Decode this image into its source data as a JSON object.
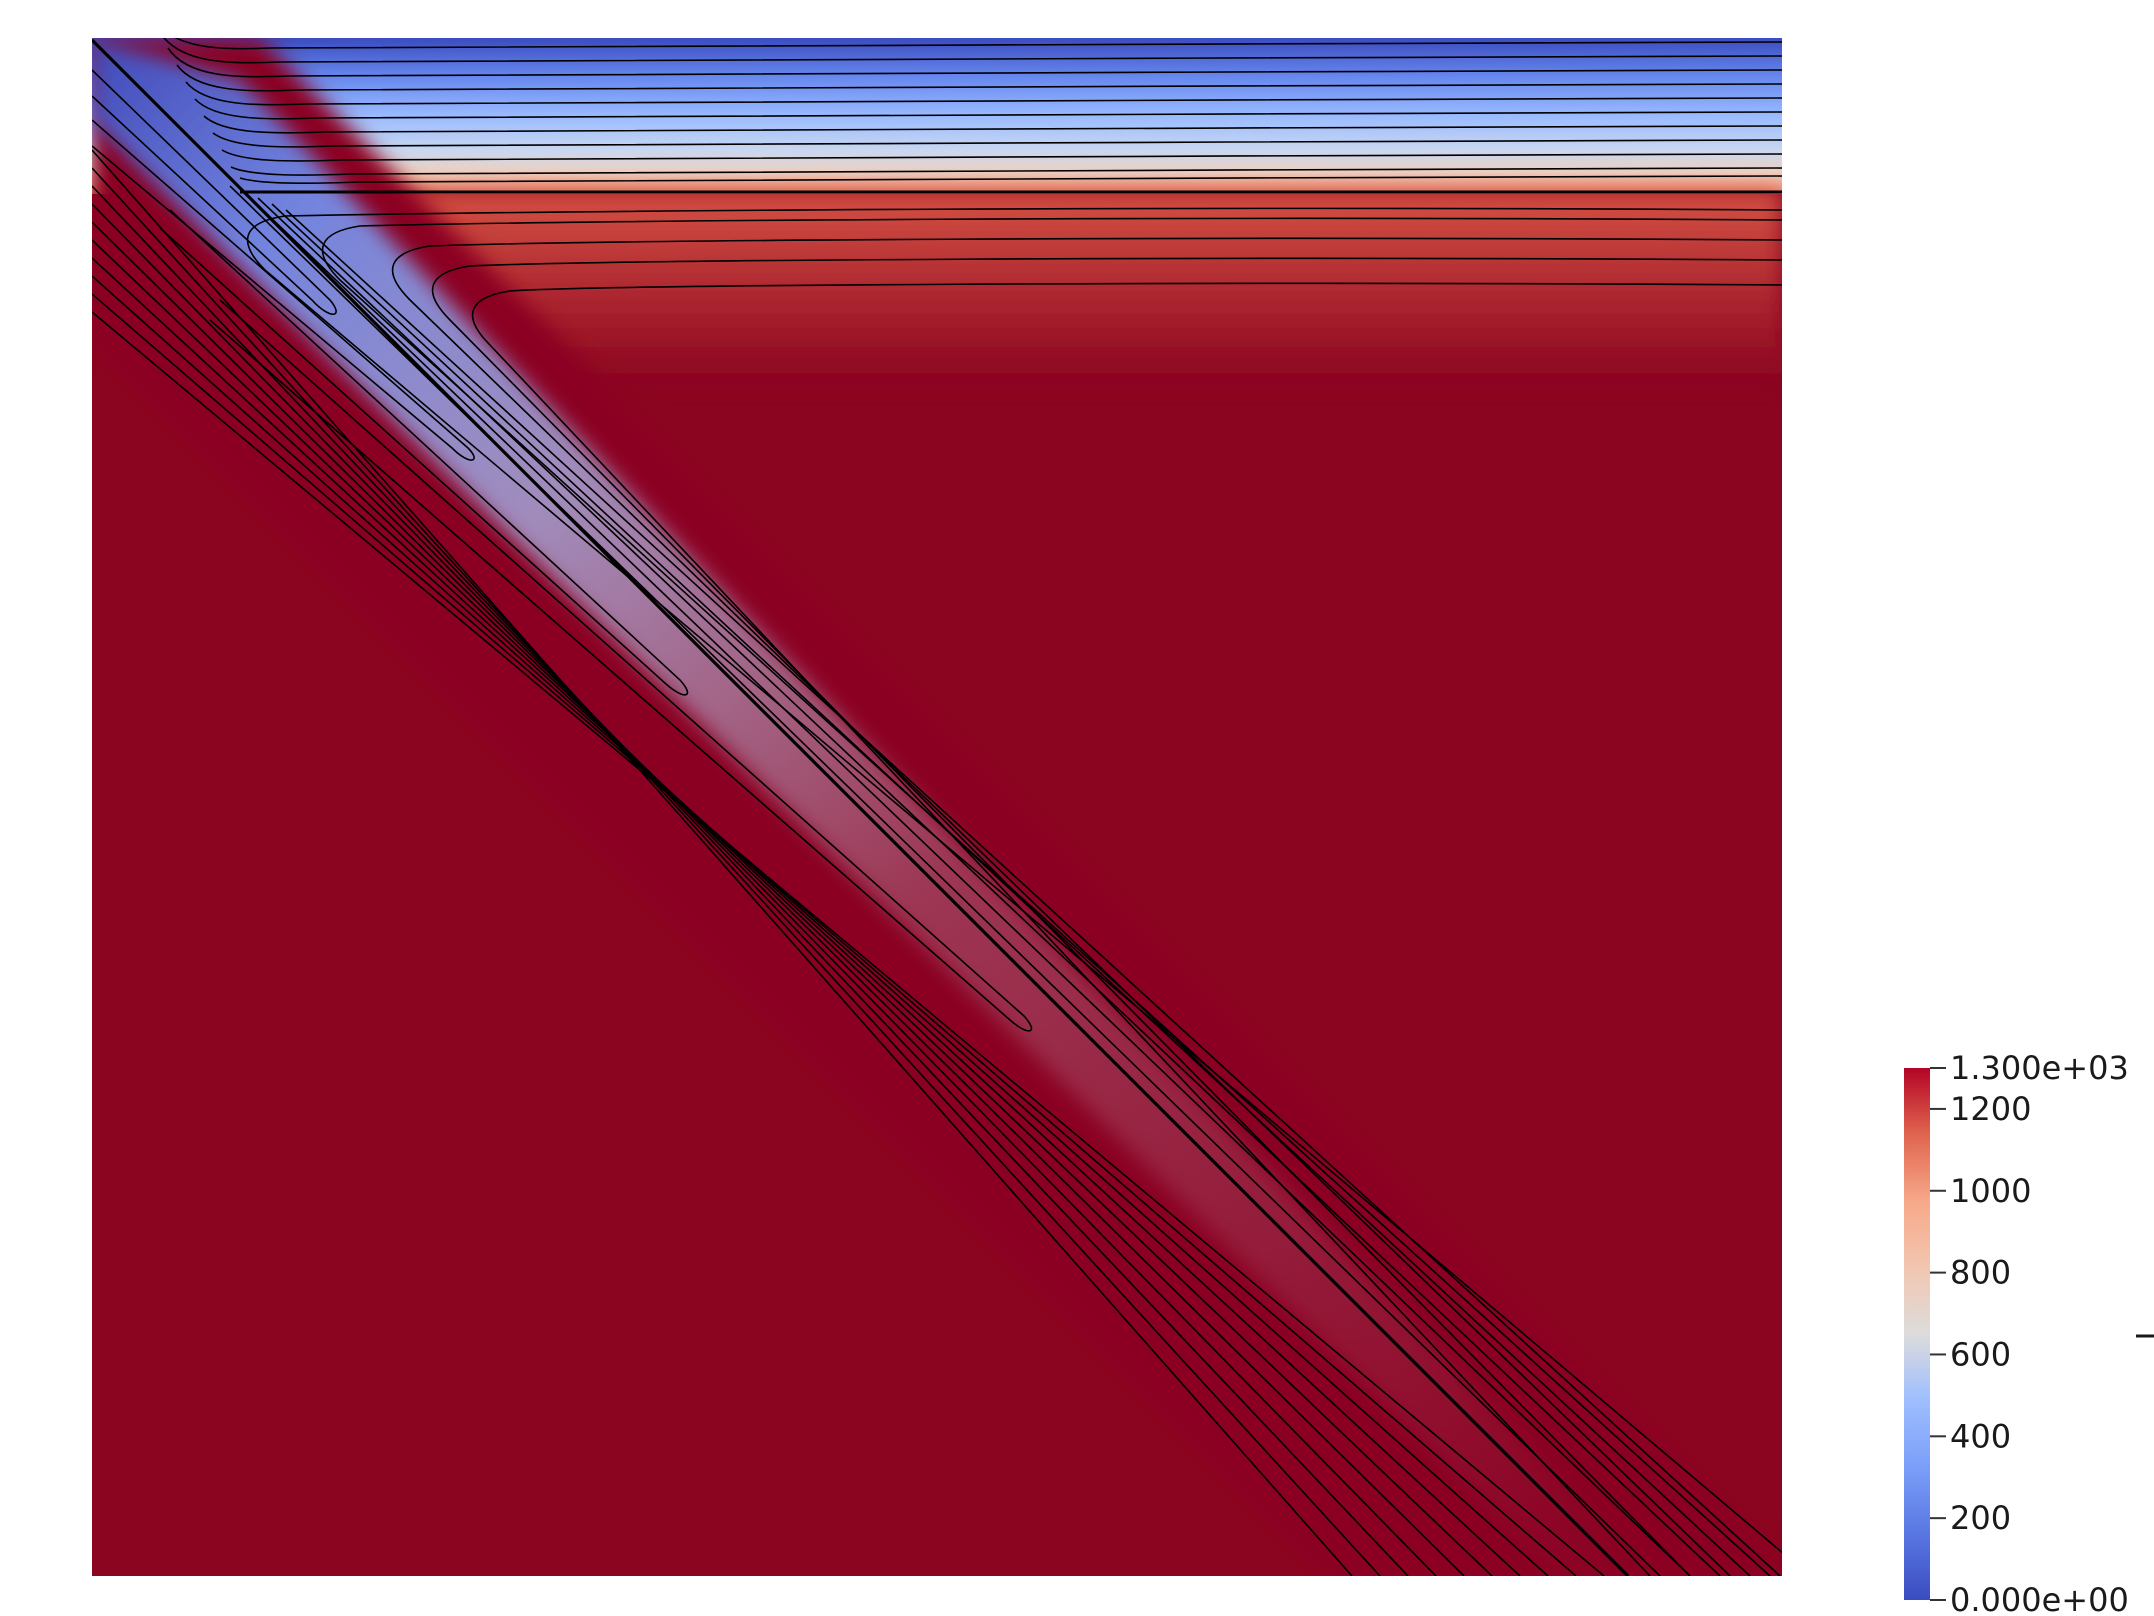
{
  "chart_data": {
    "type": "heatmap",
    "field": "T",
    "colormap": "Cool to Warm",
    "range": [
      0,
      1300
    ],
    "colors": {
      "low": "#3b4cc0",
      "mid": "#dddddd",
      "high": "#b40426",
      "saturated": "#8b0420",
      "contour": "#000000"
    },
    "colorbar": {
      "title": "T",
      "position": "bottom-right",
      "orientation": "vertical",
      "ticks": [
        {
          "value": 1300,
          "label": "1.300e+03"
        },
        {
          "value": 1200,
          "label": "1200"
        },
        {
          "value": 1000,
          "label": "1000"
        },
        {
          "value": 800,
          "label": "800"
        },
        {
          "value": 600,
          "label": "600"
        },
        {
          "value": 400,
          "label": "400"
        },
        {
          "value": 200,
          "label": "200"
        },
        {
          "value": 0,
          "label": "0.000e+00"
        }
      ]
    },
    "features": {
      "slab": "diagonal cold slab descending from top-left corner to bottom-right",
      "lithosphere": "cold horizontal layer along top edge",
      "mantle": "hot mantle (>1300) filling wedge and region below slab",
      "contours": "black isotherms, ~100 interval"
    }
  }
}
